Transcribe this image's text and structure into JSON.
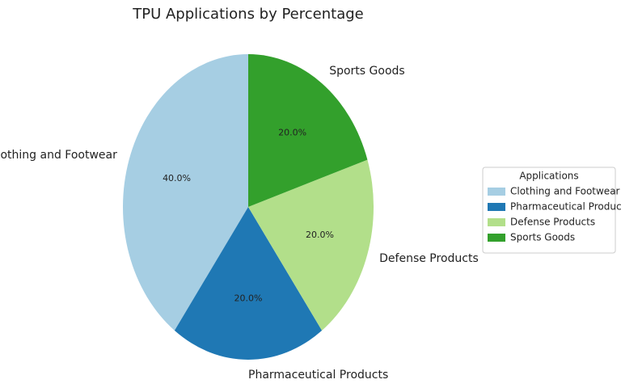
{
  "chart_data": {
    "type": "pie",
    "title": "TPU Applications by Percentage",
    "categories": [
      "Clothing and Footwear",
      "Pharmaceutical Products",
      "Defense Products",
      "Sports Goods"
    ],
    "values": [
      40,
      20,
      20,
      20
    ],
    "value_labels": [
      "40.0%",
      "20.0%",
      "20.0%",
      "20.0%"
    ],
    "colors": [
      "#a6cee3",
      "#1f78b4",
      "#b2df8a",
      "#33a02c"
    ],
    "legend_title": "Applications",
    "legend": "right"
  }
}
